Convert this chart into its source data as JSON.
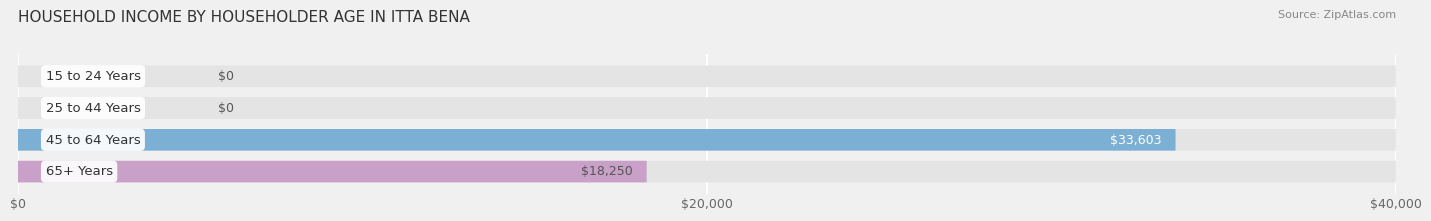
{
  "title": "HOUSEHOLD INCOME BY HOUSEHOLDER AGE IN ITTA BENA",
  "source": "Source: ZipAtlas.com",
  "categories": [
    "15 to 24 Years",
    "25 to 44 Years",
    "45 to 64 Years",
    "65+ Years"
  ],
  "values": [
    0,
    0,
    33603,
    18250
  ],
  "bar_colors": [
    "#f5c89a",
    "#f0a0a0",
    "#7bafd4",
    "#c9a0c8"
  ],
  "bar_labels": [
    "$0",
    "$0",
    "$33,603",
    "$18,250"
  ],
  "label_colors": [
    "#555555",
    "#555555",
    "#ffffff",
    "#555555"
  ],
  "xlim": [
    0,
    40000
  ],
  "xticks": [
    0,
    20000,
    40000
  ],
  "xtick_labels": [
    "$0",
    "$20,000",
    "$40,000"
  ],
  "bg_color": "#f0f0f0",
  "bar_bg_color": "#e4e4e4",
  "title_fontsize": 11,
  "tick_fontsize": 9,
  "bar_label_fontsize": 9,
  "cat_label_fontsize": 9.5
}
